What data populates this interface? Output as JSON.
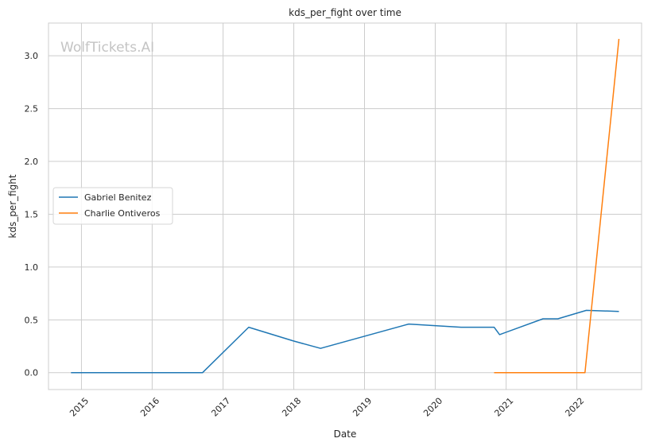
{
  "watermark": "WolfTickets.AI",
  "chart_data": {
    "type": "line",
    "title": "kds_per_fight over time",
    "xlabel": "Date",
    "ylabel": "kds_per_fight",
    "x_type": "date",
    "xlim": [
      "2014-07-15",
      "2022-12-01"
    ],
    "ylim": [
      -0.16,
      3.31
    ],
    "x_ticks": [
      "2015",
      "2016",
      "2017",
      "2018",
      "2019",
      "2020",
      "2021",
      "2022"
    ],
    "y_ticks": [
      0.0,
      0.5,
      1.0,
      1.5,
      2.0,
      2.5,
      3.0
    ],
    "y_tick_labels": [
      "0.0",
      "0.5",
      "1.0",
      "1.5",
      "2.0",
      "2.5",
      "3.0"
    ],
    "grid": true,
    "legend_position": "center-left",
    "series": [
      {
        "name": "Gabriel Benitez",
        "color": "#1f77b4",
        "points": [
          {
            "x": "2014-11-08",
            "y": 0.0
          },
          {
            "x": "2016-09-17",
            "y": 0.0
          },
          {
            "x": "2017-05-13",
            "y": 0.43
          },
          {
            "x": "2017-12-30",
            "y": 0.3
          },
          {
            "x": "2018-05-19",
            "y": 0.23
          },
          {
            "x": "2019-08-17",
            "y": 0.46
          },
          {
            "x": "2020-05-13",
            "y": 0.43
          },
          {
            "x": "2020-10-31",
            "y": 0.43
          },
          {
            "x": "2020-11-28",
            "y": 0.36
          },
          {
            "x": "2021-07-10",
            "y": 0.51
          },
          {
            "x": "2021-09-25",
            "y": 0.51
          },
          {
            "x": "2022-02-19",
            "y": 0.59
          },
          {
            "x": "2022-08-06",
            "y": 0.58
          }
        ]
      },
      {
        "name": "Charlie Ontiveros",
        "color": "#ff7f0e",
        "points": [
          {
            "x": "2020-10-31",
            "y": 0.0
          },
          {
            "x": "2022-02-12",
            "y": 0.0
          },
          {
            "x": "2022-08-06",
            "y": 3.16
          }
        ]
      }
    ]
  }
}
